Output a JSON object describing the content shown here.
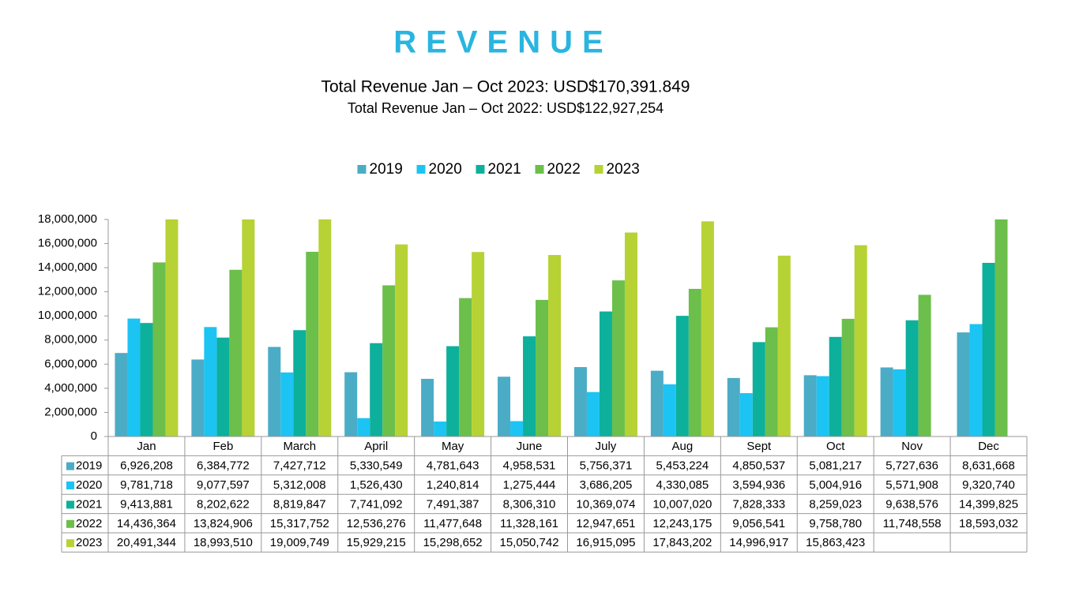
{
  "chart_data": {
    "type": "bar",
    "title": "REVENUE",
    "subtitle": "Total Revenue Jan – Oct 2023: USD$170,391.849",
    "subtitle2": "Total Revenue Jan – Oct 2022: USD$122,927,254",
    "categories": [
      "Jan",
      "Feb",
      "March",
      "April",
      "May",
      "June",
      "July",
      "Aug",
      "Sept",
      "Oct",
      "Nov",
      "Dec"
    ],
    "series": [
      {
        "name": "2019",
        "color": "#4bacc6",
        "values": [
          6926208,
          6384772,
          7427712,
          5330549,
          4781643,
          4958531,
          5756371,
          5453224,
          4850537,
          5081217,
          5727636,
          8631668
        ],
        "value_labels": [
          "6,926,208",
          "6,384,772",
          "7,427,712",
          "5,330,549",
          "4,781,643",
          "4,958,531",
          "5,756,371",
          "5,453,224",
          "4,850,537",
          "5,081,217",
          "5,727,636",
          "8,631,668"
        ]
      },
      {
        "name": "2020",
        "color": "#1cc4f4",
        "values": [
          9781718,
          9077597,
          5312008,
          1526430,
          1240814,
          1275444,
          3686205,
          4330085,
          3594936,
          5004916,
          5571908,
          9320740
        ],
        "value_labels": [
          "9,781,718",
          "9,077,597",
          "5,312,008",
          "1,526,430",
          "1,240,814",
          "1,275,444",
          "3,686,205",
          "4,330,085",
          "3,594,936",
          "5,004,916",
          "5,571,908",
          "9,320,740"
        ]
      },
      {
        "name": "2021",
        "color": "#0db09b",
        "values": [
          9413881,
          8202622,
          8819847,
          7741092,
          7491387,
          8306310,
          10369074,
          10007020,
          7828333,
          8259023,
          9638576,
          14399825
        ],
        "value_labels": [
          "9,413,881",
          "8,202,622",
          "8,819,847",
          "7,741,092",
          "7,491,387",
          "8,306,310",
          "10,369,074",
          "10,007,020",
          "7,828,333",
          "8,259,023",
          "9,638,576",
          "14,399,825"
        ]
      },
      {
        "name": "2022",
        "color": "#6cbf4a",
        "values": [
          14436364,
          13824906,
          15317752,
          12536276,
          11477648,
          11328161,
          12947651,
          12243175,
          9056541,
          9758780,
          11748558,
          18593032
        ],
        "value_labels": [
          "14,436,364",
          "13,824,906",
          "15,317,752",
          "12,536,276",
          "11,477,648",
          "11,328,161",
          "12,947,651",
          "12,243,175",
          "9,056,541",
          "9,758,780",
          "11,748,558",
          "18,593,032"
        ]
      },
      {
        "name": "2023",
        "color": "#b6d235",
        "values": [
          20491344,
          18993510,
          19009749,
          15929215,
          15298652,
          15050742,
          16915095,
          17843202,
          14996917,
          15863423,
          null,
          null
        ],
        "value_labels": [
          "20,491,344",
          "18,993,510",
          "19,009,749",
          "15,929,215",
          "15,298,652",
          "15,050,742",
          "16,915,095",
          "17,843,202",
          "14,996,917",
          "15,863,423",
          null,
          null
        ]
      }
    ],
    "ylim": [
      0,
      18000000
    ],
    "yticks": [
      0,
      {
        "value": 2000000,
        "label": "2,000,000"
      },
      {
        "value": 4000000,
        "label": "4,000,000"
      },
      {
        "value": 6000000,
        "label": "6,000,000"
      },
      {
        "value": 8000000,
        "label": "8,000,000"
      },
      {
        "value": 10000000,
        "label": "10,000,000"
      },
      {
        "value": 12000000,
        "label": "12,000,000"
      },
      {
        "value": 14000000,
        "label": "14,000,000"
      },
      {
        "value": 16000000,
        "label": "16,000,000"
      },
      {
        "value": 18000000,
        "label": "18,000,000"
      }
    ],
    "legend": "top"
  }
}
